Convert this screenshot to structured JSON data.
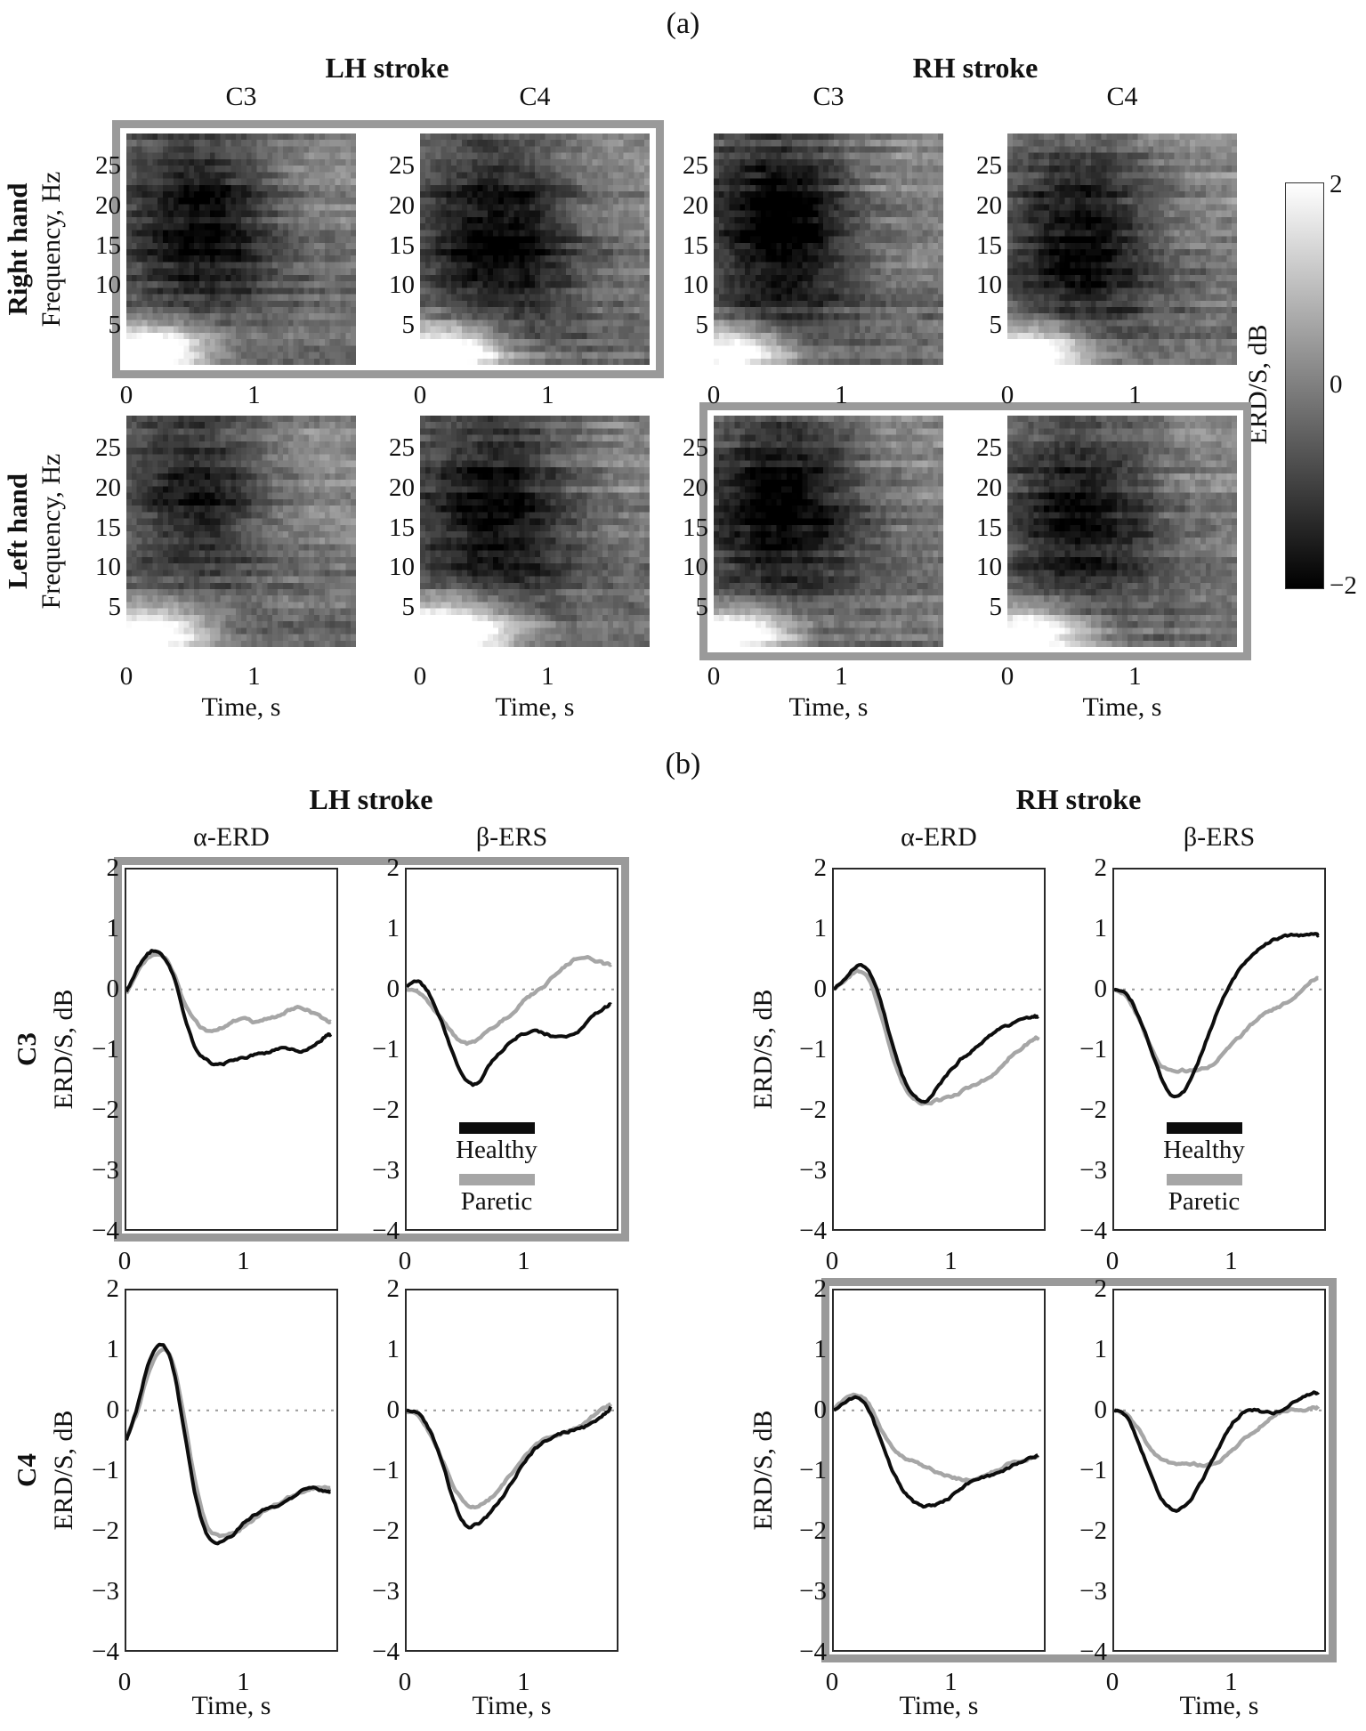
{
  "panel_a": {
    "label": "(a)",
    "groups": [
      {
        "title": "LH stroke",
        "channels": [
          "C3",
          "C4"
        ]
      },
      {
        "title": "RH stroke",
        "channels": [
          "C3",
          "C4"
        ]
      }
    ],
    "row_labels": [
      "Right hand",
      "Left hand"
    ],
    "ylabel": "Frequency, Hz",
    "xlabel": "Time, s",
    "yticks": [
      25,
      20,
      15,
      10,
      5
    ],
    "xticks": [
      0,
      1
    ],
    "colorbar": {
      "label": "ERD/S, dB",
      "tick_labels": [
        "2",
        "0",
        "−2"
      ],
      "max_db": 2,
      "min_db": -2
    }
  },
  "panel_b": {
    "label": "(b)",
    "groups": [
      {
        "title": "LH stroke"
      },
      {
        "title": "RH stroke"
      }
    ],
    "col_titles": [
      "α-ERD",
      "β-ERS",
      "α-ERD",
      "β-ERS"
    ],
    "row_labels": [
      "C3",
      "C4"
    ],
    "ylabel": "ERD/S, dB",
    "xlabel": "Time, s",
    "yticks": [
      "2",
      "1",
      "0",
      "−1",
      "−2",
      "−3",
      "−4"
    ],
    "xticks": [
      "0",
      "1"
    ],
    "legend": {
      "healthy_label": "Healthy",
      "paretic_label": "Paretic",
      "healthy_color": "#0d0d0d",
      "paretic_color": "#a6a6a6"
    }
  },
  "chart_data": [
    {
      "type": "heatmap",
      "title": "Event-related time-frequency maps (ERD/S)",
      "xlabel": "Time, s",
      "ylabel": "Frequency, Hz",
      "x_range": [
        0,
        1.8
      ],
      "y_range": [
        0,
        29
      ],
      "value_range_db": [
        -2,
        2
      ],
      "colormap": "gray (black = -2 dB ERD, white = +2 dB ERS)",
      "maps": [
        {
          "group": "LH stroke",
          "hand": "Right hand",
          "channel": "C3",
          "highlighted": true,
          "seed": 101,
          "erd": {
            "tc": 0.6,
            "st": 0.42,
            "fc": 18,
            "sf": 8.0,
            "amp": 1.7
          },
          "low_ers": {
            "tc": 0.18,
            "st": 0.34,
            "fc": 1.5,
            "sf": 2.4,
            "amp": 3.4
          },
          "late_ers": {
            "tc": 1.55,
            "st": 0.5,
            "fc": 24,
            "sf": 7,
            "amp": 0.45
          }
        },
        {
          "group": "LH stroke",
          "hand": "Right hand",
          "channel": "C4",
          "highlighted": true,
          "seed": 102,
          "erd": {
            "tc": 0.62,
            "st": 0.45,
            "fc": 16,
            "sf": 9.0,
            "amp": 1.85
          },
          "low_ers": {
            "tc": 0.2,
            "st": 0.36,
            "fc": 1.5,
            "sf": 2.6,
            "amp": 3.6
          },
          "late_ers": {
            "tc": 1.55,
            "st": 0.5,
            "fc": 24,
            "sf": 7,
            "amp": 0.4
          }
        },
        {
          "group": "RH stroke",
          "hand": "Right hand",
          "channel": "C3",
          "highlighted": false,
          "seed": 103,
          "erd": {
            "tc": 0.55,
            "st": 0.4,
            "fc": 17,
            "sf": 9.0,
            "amp": 1.95
          },
          "low_ers": {
            "tc": 0.15,
            "st": 0.32,
            "fc": 1.5,
            "sf": 2.2,
            "amp": 3.2
          },
          "late_ers": {
            "tc": 1.5,
            "st": 0.5,
            "fc": 23,
            "sf": 7,
            "amp": 0.5
          }
        },
        {
          "group": "RH stroke",
          "hand": "Right hand",
          "channel": "C4",
          "highlighted": false,
          "seed": 104,
          "erd": {
            "tc": 0.6,
            "st": 0.42,
            "fc": 15,
            "sf": 8.5,
            "amp": 1.75
          },
          "low_ers": {
            "tc": 0.18,
            "st": 0.33,
            "fc": 1.5,
            "sf": 2.3,
            "amp": 3.3
          },
          "late_ers": {
            "tc": 1.55,
            "st": 0.5,
            "fc": 24,
            "sf": 7,
            "amp": 0.45
          }
        },
        {
          "group": "LH stroke",
          "hand": "Left hand",
          "channel": "C3",
          "highlighted": false,
          "seed": 105,
          "erd": {
            "tc": 0.55,
            "st": 0.4,
            "fc": 19,
            "sf": 7.5,
            "amp": 1.55
          },
          "low_ers": {
            "tc": 0.18,
            "st": 0.33,
            "fc": 1.5,
            "sf": 2.3,
            "amp": 3.3
          },
          "late_ers": {
            "tc": 1.55,
            "st": 0.5,
            "fc": 24,
            "sf": 7,
            "amp": 0.45
          }
        },
        {
          "group": "LH stroke",
          "hand": "Left hand",
          "channel": "C4",
          "highlighted": false,
          "seed": 106,
          "erd": {
            "tc": 0.6,
            "st": 0.44,
            "fc": 17,
            "sf": 8.5,
            "amp": 1.75
          },
          "low_ers": {
            "tc": 0.22,
            "st": 0.38,
            "fc": 1.8,
            "sf": 2.8,
            "amp": 3.8
          },
          "late_ers": {
            "tc": 1.55,
            "st": 0.5,
            "fc": 24,
            "sf": 7,
            "amp": 0.4
          }
        },
        {
          "group": "RH stroke",
          "hand": "Left hand",
          "channel": "C3",
          "highlighted": true,
          "seed": 107,
          "erd": {
            "tc": 0.55,
            "st": 0.45,
            "fc": 18,
            "sf": 8.5,
            "amp": 1.8
          },
          "low_ers": {
            "tc": 0.15,
            "st": 0.32,
            "fc": 1.5,
            "sf": 2.2,
            "amp": 3.2
          },
          "late_ers": {
            "tc": 1.55,
            "st": 0.5,
            "fc": 24,
            "sf": 7,
            "amp": 0.45
          }
        },
        {
          "group": "RH stroke",
          "hand": "Left hand",
          "channel": "C4",
          "highlighted": true,
          "seed": 108,
          "erd": {
            "tc": 0.6,
            "st": 0.42,
            "fc": 16,
            "sf": 8.0,
            "amp": 1.65
          },
          "low_ers": {
            "tc": 0.18,
            "st": 0.34,
            "fc": 1.5,
            "sf": 2.4,
            "amp": 3.2
          },
          "late_ers": {
            "tc": 1.55,
            "st": 0.5,
            "fc": 24,
            "sf": 7,
            "amp": 0.45
          }
        }
      ]
    },
    {
      "type": "line",
      "title": "ERD/S time courses (healthy vs paretic hand)",
      "xlabel": "Time, s",
      "ylabel": "ERD/S, dB",
      "x_range": [
        0,
        1.8
      ],
      "y_range": [
        -4,
        2
      ],
      "series_names": [
        "Healthy",
        "Paretic"
      ],
      "x": [
        0,
        0.1,
        0.2,
        0.3,
        0.4,
        0.5,
        0.6,
        0.7,
        0.8,
        0.9,
        1,
        1.1,
        1.2,
        1.3,
        1.4,
        1.5,
        1.6,
        1.7,
        1.75
      ],
      "subplots": [
        {
          "group": "LH stroke",
          "channel": "C3",
          "band": "α-ERD",
          "highlighted": true,
          "legend": false,
          "healthy": [
            -0.05,
            0.35,
            0.62,
            0.6,
            0.25,
            -0.45,
            -1,
            -1.2,
            -1.25,
            -1.2,
            -1.15,
            -1.1,
            -1.05,
            -1,
            -1,
            -1.05,
            -0.95,
            -0.8,
            -0.75
          ],
          "paretic": [
            -0.05,
            0.3,
            0.55,
            0.58,
            0.3,
            -0.25,
            -0.55,
            -0.7,
            -0.65,
            -0.55,
            -0.5,
            -0.55,
            -0.5,
            -0.45,
            -0.35,
            -0.3,
            -0.4,
            -0.5,
            -0.55
          ]
        },
        {
          "group": "LH stroke",
          "channel": "C3",
          "band": "β-ERS",
          "highlighted": true,
          "legend": true,
          "healthy": [
            0.05,
            0.12,
            -0.1,
            -0.55,
            -1.1,
            -1.5,
            -1.58,
            -1.3,
            -1.05,
            -0.85,
            -0.75,
            -0.7,
            -0.75,
            -0.8,
            -0.75,
            -0.65,
            -0.45,
            -0.3,
            -0.25
          ],
          "paretic": [
            0,
            -0.05,
            -0.25,
            -0.5,
            -0.75,
            -0.9,
            -0.85,
            -0.7,
            -0.55,
            -0.4,
            -0.2,
            -0.05,
            0.1,
            0.3,
            0.45,
            0.55,
            0.5,
            0.42,
            0.4
          ]
        },
        {
          "group": "RH stroke",
          "channel": "C3",
          "band": "α-ERD",
          "highlighted": false,
          "legend": false,
          "healthy": [
            0,
            0.2,
            0.38,
            0.3,
            -0.2,
            -0.9,
            -1.5,
            -1.8,
            -1.85,
            -1.6,
            -1.35,
            -1.15,
            -1,
            -0.85,
            -0.7,
            -0.6,
            -0.5,
            -0.45,
            -0.45
          ],
          "paretic": [
            0,
            0.15,
            0.3,
            0.15,
            -0.4,
            -1.1,
            -1.6,
            -1.85,
            -1.9,
            -1.85,
            -1.8,
            -1.7,
            -1.6,
            -1.5,
            -1.35,
            -1.15,
            -1,
            -0.85,
            -0.8
          ]
        },
        {
          "group": "RH stroke",
          "channel": "C3",
          "band": "β-ERS",
          "highlighted": false,
          "legend": true,
          "healthy": [
            0,
            -0.05,
            -0.4,
            -0.9,
            -1.45,
            -1.78,
            -1.7,
            -1.3,
            -0.8,
            -0.3,
            0.1,
            0.4,
            0.6,
            0.75,
            0.85,
            0.9,
            0.9,
            0.92,
            0.9
          ],
          "paretic": [
            0,
            -0.1,
            -0.45,
            -0.9,
            -1.25,
            -1.35,
            -1.35,
            -1.35,
            -1.3,
            -1.15,
            -0.95,
            -0.75,
            -0.55,
            -0.4,
            -0.3,
            -0.2,
            -0.05,
            0.15,
            0.2
          ]
        },
        {
          "group": "LH stroke",
          "channel": "C4",
          "band": "α-ERD",
          "highlighted": false,
          "legend": false,
          "healthy": [
            -0.5,
            0.1,
            0.85,
            1.1,
            0.7,
            -0.4,
            -1.5,
            -2.1,
            -2.2,
            -2.1,
            -1.9,
            -1.75,
            -1.65,
            -1.6,
            -1.5,
            -1.35,
            -1.3,
            -1.35,
            -1.35
          ],
          "paretic": [
            -0.45,
            0,
            0.7,
            1,
            0.8,
            -0.2,
            -1.3,
            -1.95,
            -2.1,
            -2.05,
            -1.95,
            -1.8,
            -1.65,
            -1.55,
            -1.45,
            -1.35,
            -1.3,
            -1.3,
            -1.3
          ]
        },
        {
          "group": "LH stroke",
          "channel": "C4",
          "band": "β-ERS",
          "highlighted": false,
          "legend": false,
          "healthy": [
            0,
            -0.05,
            -0.35,
            -0.85,
            -1.5,
            -1.9,
            -1.9,
            -1.75,
            -1.5,
            -1.2,
            -0.9,
            -0.65,
            -0.5,
            -0.4,
            -0.35,
            -0.3,
            -0.2,
            -0.05,
            0.05
          ],
          "paretic": [
            0,
            -0.1,
            -0.4,
            -0.8,
            -1.25,
            -1.55,
            -1.6,
            -1.5,
            -1.3,
            -1.05,
            -0.8,
            -0.6,
            -0.45,
            -0.4,
            -0.35,
            -0.25,
            -0.1,
            0.05,
            0.1
          ]
        },
        {
          "group": "RH stroke",
          "channel": "C4",
          "band": "α-ERD",
          "highlighted": true,
          "legend": false,
          "healthy": [
            0,
            0.15,
            0.2,
            0,
            -0.5,
            -1,
            -1.35,
            -1.55,
            -1.6,
            -1.55,
            -1.45,
            -1.3,
            -1.15,
            -1.1,
            -1.05,
            -0.95,
            -0.85,
            -0.78,
            -0.75
          ],
          "paretic": [
            0,
            0.2,
            0.25,
            0.1,
            -0.3,
            -0.6,
            -0.78,
            -0.85,
            -0.95,
            -1.05,
            -1.1,
            -1.15,
            -1.15,
            -1.1,
            -1,
            -0.9,
            -0.85,
            -0.78,
            -0.75
          ]
        },
        {
          "group": "RH stroke",
          "channel": "C4",
          "band": "β-ERS",
          "highlighted": true,
          "legend": false,
          "healthy": [
            0,
            -0.1,
            -0.5,
            -1,
            -1.45,
            -1.65,
            -1.6,
            -1.35,
            -1,
            -0.6,
            -0.25,
            -0.05,
            0,
            -0.05,
            -0.02,
            0.1,
            0.2,
            0.28,
            0.3
          ],
          "paretic": [
            0,
            -0.08,
            -0.3,
            -0.6,
            -0.8,
            -0.88,
            -0.9,
            -0.9,
            -0.92,
            -0.85,
            -0.7,
            -0.5,
            -0.35,
            -0.2,
            -0.05,
            0,
            0,
            0.03,
            0.05
          ]
        }
      ]
    }
  ]
}
